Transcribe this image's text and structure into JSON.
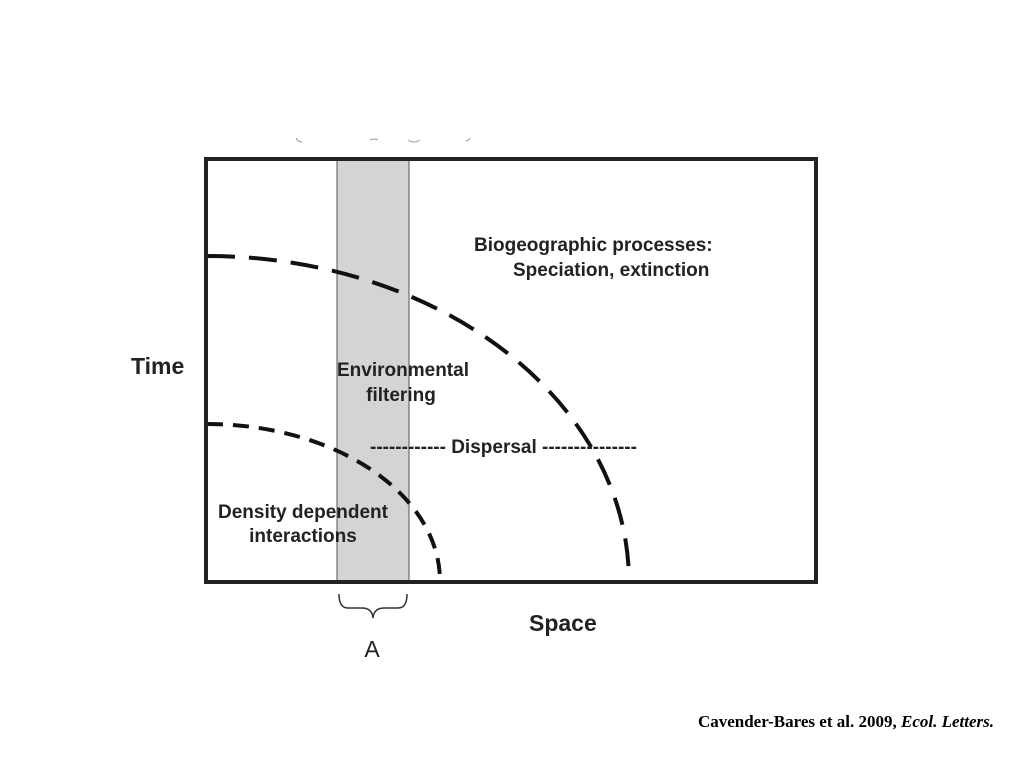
{
  "diagram": {
    "labels": {
      "biogeo_line1": "Biogeographic processes:",
      "biogeo_line2": "Speciation, extinction",
      "env_line1": "Environmental",
      "env_line2": "filtering",
      "dispersal": "------------ Dispersal ---------------",
      "density_line1": "Density dependent",
      "density_line2": "interactions",
      "time_axis": "Time",
      "space_axis": "Space",
      "bracket_label": "A"
    }
  },
  "citation": {
    "authors": "Cavender-Bares et al. 2009,",
    "journal": "Ecol. Letters."
  }
}
